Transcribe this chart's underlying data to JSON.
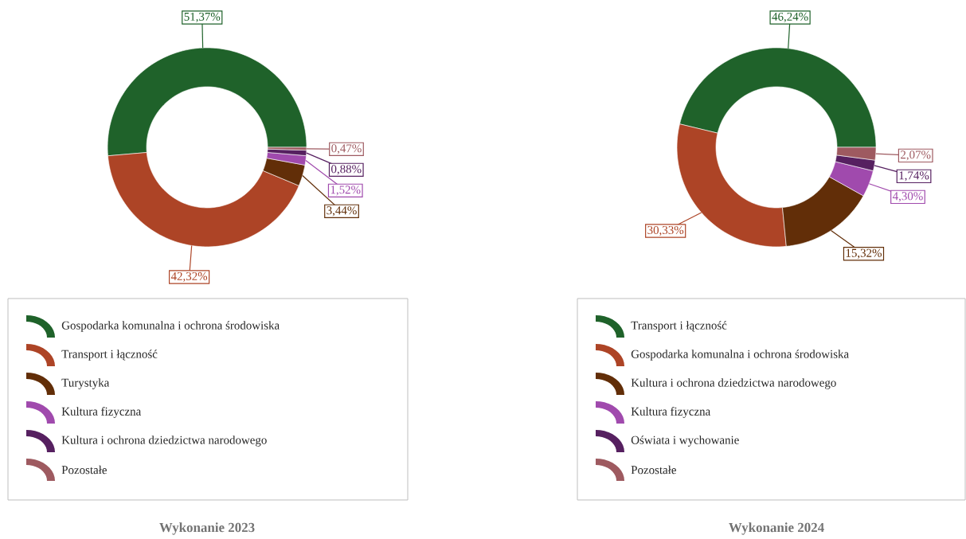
{
  "chart_data": [
    {
      "type": "donut",
      "title": "Wykonanie 2023",
      "legend": "bottom",
      "categories": [
        "Gospodarka komunalna i ochrona środowiska",
        "Transport i łączność",
        "Turystyka",
        "Kultura fizyczna",
        "Kultura i ochrona dziedzictwa narodowego",
        "Pozostałe"
      ],
      "values": [
        51.37,
        42.32,
        3.44,
        1.52,
        0.88,
        0.47
      ],
      "value_labels": [
        "51,37%",
        "42,32%",
        "3,44%",
        "1,52%",
        "0,88%",
        "0,47%"
      ],
      "colors": [
        "#1f622a",
        "#ad4426",
        "#622e08",
        "#a04aad",
        "#562060",
        "#9e5a60"
      ]
    },
    {
      "type": "donut",
      "title": "Wykonanie 2024",
      "legend": "bottom",
      "categories": [
        "Transport i łączność",
        "Gospodarka komunalna i ochrona środowiska",
        "Kultura i ochrona dziedzictwa narodowego",
        "Kultura fizyczna",
        "Oświata i wychowanie",
        "Pozostałe"
      ],
      "values": [
        46.24,
        30.33,
        15.32,
        4.3,
        1.74,
        2.07
      ],
      "value_labels": [
        "46,24%",
        "30,33%",
        "15,32%",
        "4,30%",
        "1,74%",
        "2,07%"
      ],
      "colors": [
        "#1f622a",
        "#ad4426",
        "#622e08",
        "#a04aad",
        "#562060",
        "#9e5a60"
      ]
    }
  ]
}
